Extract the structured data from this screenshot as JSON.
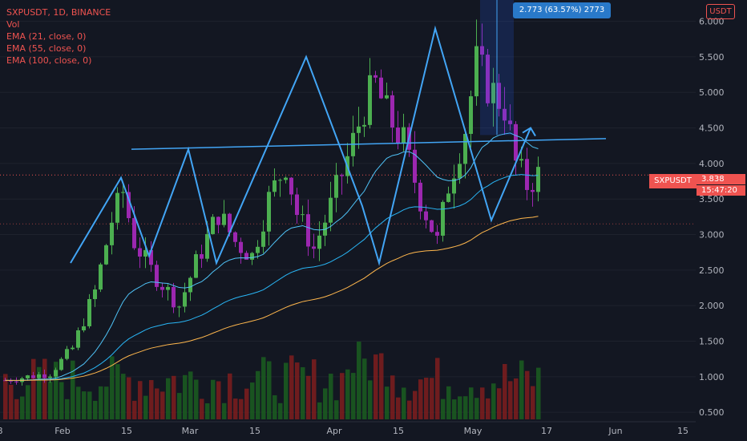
{
  "legend": {
    "symbol": "SXPUSDT, 1D, BINANCE",
    "vol": "Vol",
    "ema21": "EMA (21, close, 0)",
    "ema55": "EMA (55, close, 0)",
    "ema100": "EMA (100, close, 0)"
  },
  "currency": "USDT",
  "measure_label": "2.773 (63.57%) 2773",
  "price_tag": "SXPUSDT",
  "last_price": "3.838",
  "countdown": "15:47:20",
  "colors": {
    "background": "#131722",
    "up": "#4caf50",
    "down": "#9c27b0",
    "pattern": "#42a5f5",
    "ema21": "#4fc3f7",
    "ema55": "#29b6f6",
    "ema100": "#ffb74d",
    "axis_text": "#b2b5be",
    "price_line": "#ef5350"
  },
  "chart_data": {
    "type": "candlestick",
    "y_ticks": [
      "6.000",
      "5.500",
      "5.000",
      "4.500",
      "4.000",
      "3.500",
      "3.000",
      "2.500",
      "2.000",
      "1.500",
      "1.000",
      "0.500"
    ],
    "x_ticks": [
      "8",
      "Feb",
      "15",
      "Mar",
      "15",
      "Apr",
      "15",
      "May",
      "17",
      "Jun",
      "15"
    ],
    "ylim": [
      0.4,
      6.3
    ],
    "pattern": [
      {
        "x": 12,
        "y": 2.6
      },
      {
        "x": 21,
        "y": 3.8
      },
      {
        "x": 26,
        "y": 2.7
      },
      {
        "x": 33,
        "y": 4.2
      },
      {
        "x": 38,
        "y": 2.6
      },
      {
        "x": 54,
        "y": 5.5
      },
      {
        "x": 64,
        "y": 3.4
      },
      {
        "x": 67,
        "y": 2.6
      },
      {
        "x": 77,
        "y": 5.9
      },
      {
        "x": 87,
        "y": 3.2
      },
      {
        "x": 94,
        "y": 4.5
      }
    ],
    "neckline": [
      {
        "x": 20,
        "y": 4.2
      },
      {
        "x": 96,
        "y": 4.35
      }
    ],
    "target_box": {
      "x_from": 85,
      "x_to": 91,
      "y_from": 4.4,
      "y_to": 6.3
    }
  }
}
